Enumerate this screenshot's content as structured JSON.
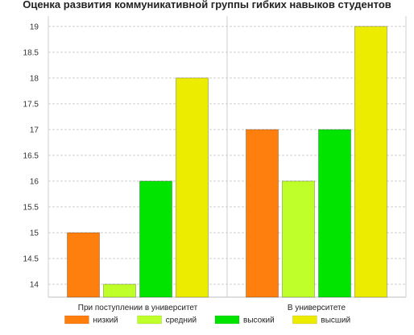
{
  "chart_data": {
    "type": "bar",
    "title": "Оценка развития коммуникативной группы гибких навыков студентов",
    "xlabel": "",
    "ylabel": "",
    "categories": [
      "При поступлении в университет",
      "В университете"
    ],
    "series": [
      {
        "name": "низкий",
        "values": [
          15,
          17
        ],
        "color": "#ff7f0e"
      },
      {
        "name": "средний",
        "values": [
          14,
          16
        ],
        "color": "#bfff2a"
      },
      {
        "name": "высокий",
        "values": [
          16,
          17
        ],
        "color": "#00e400"
      },
      {
        "name": "высший",
        "values": [
          18,
          19
        ],
        "color": "#ecec00"
      }
    ],
    "ylim": [
      13.75,
      19.2
    ],
    "yticks": [
      "14",
      "14.5",
      "15",
      "15.5",
      "16",
      "16.5",
      "17",
      "17.5",
      "18",
      "18.5",
      "19"
    ],
    "grid": true,
    "legend": "bottom"
  }
}
